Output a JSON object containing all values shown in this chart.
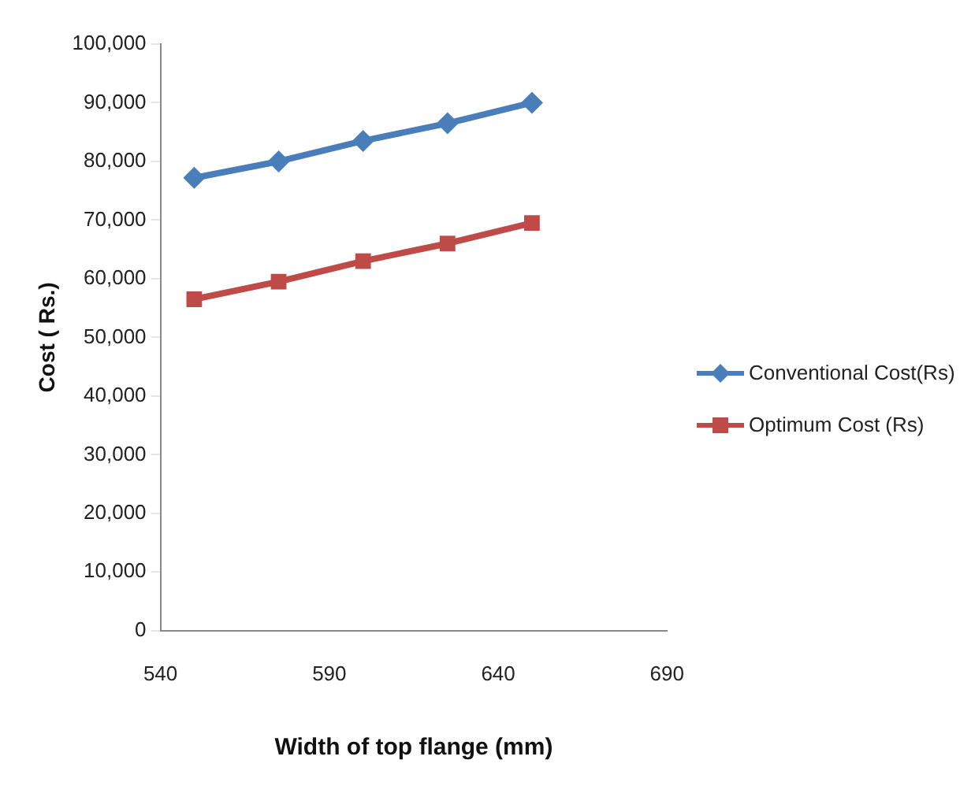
{
  "chart_data": {
    "type": "line",
    "xlabel": "Width of top flange (mm)",
    "ylabel": "Cost ( Rs.)",
    "x": [
      550,
      575,
      600,
      625,
      650
    ],
    "series": [
      {
        "name": "Conventional Cost(Rs)",
        "color": "#4a7ebb",
        "marker": "diamond",
        "values": [
          77200,
          80000,
          83500,
          86500,
          90000
        ]
      },
      {
        "name": "Optimum Cost (Rs)",
        "color": "#be4b48",
        "marker": "square",
        "values": [
          56500,
          59500,
          63000,
          66000,
          69500
        ]
      }
    ],
    "xlim": [
      540,
      690
    ],
    "xticks": [
      540,
      590,
      640,
      690
    ],
    "ylim": [
      0,
      100000
    ],
    "yticks": [
      {
        "value": 0,
        "label": "0"
      },
      {
        "value": 10000,
        "label": "10,000"
      },
      {
        "value": 20000,
        "label": "20,000"
      },
      {
        "value": 30000,
        "label": "30,000"
      },
      {
        "value": 40000,
        "label": "40,000"
      },
      {
        "value": 50000,
        "label": "50,000"
      },
      {
        "value": 60000,
        "label": "60,000"
      },
      {
        "value": 70000,
        "label": "70,000"
      },
      {
        "value": 80000,
        "label": "80,000"
      },
      {
        "value": 90000,
        "label": "90,000"
      },
      {
        "value": 100000,
        "label": "100,000"
      }
    ],
    "grid": false,
    "legend": "right",
    "line_style": "solid"
  }
}
